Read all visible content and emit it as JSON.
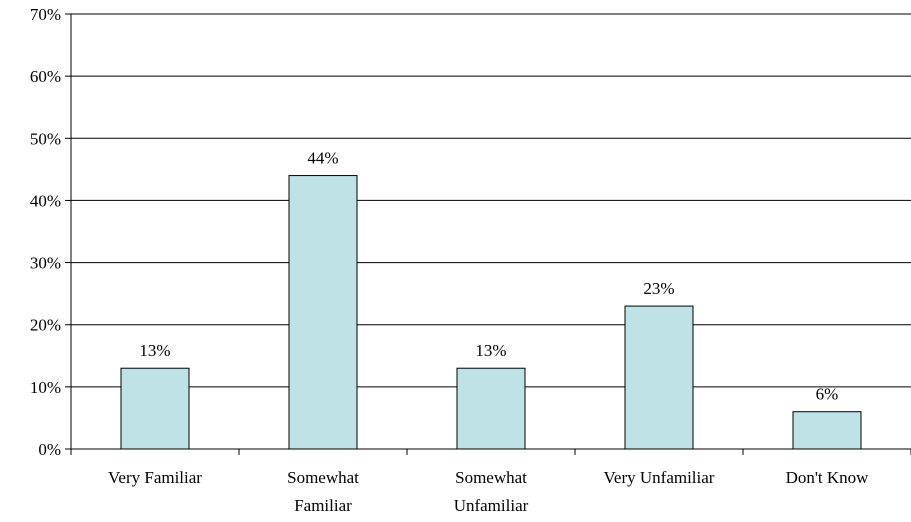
{
  "colors": {
    "bar_fill": "#BFE2E6",
    "bar_stroke": "#000000",
    "gridline": "#000000",
    "axis": "#000000",
    "background": "#FFFFFF"
  },
  "chart_data": {
    "type": "bar",
    "title": "",
    "xlabel": "",
    "ylabel": "",
    "categories": [
      [
        "Very Familiar"
      ],
      [
        "Somewhat",
        "Familiar"
      ],
      [
        "Somewhat",
        "Unfamiliar"
      ],
      [
        "Very Unfamiliar"
      ],
      [
        "Don't Know"
      ]
    ],
    "values": [
      13,
      44,
      13,
      23,
      6
    ],
    "data_labels": [
      "13%",
      "44%",
      "13%",
      "23%",
      "6%"
    ],
    "ylim": [
      0,
      70
    ],
    "yticks": [
      0,
      10,
      20,
      30,
      40,
      50,
      60,
      70
    ],
    "ytick_labels": [
      "0%",
      "10%",
      "20%",
      "30%",
      "40%",
      "50%",
      "60%",
      "70%"
    ],
    "grid": true,
    "legend": "none"
  }
}
